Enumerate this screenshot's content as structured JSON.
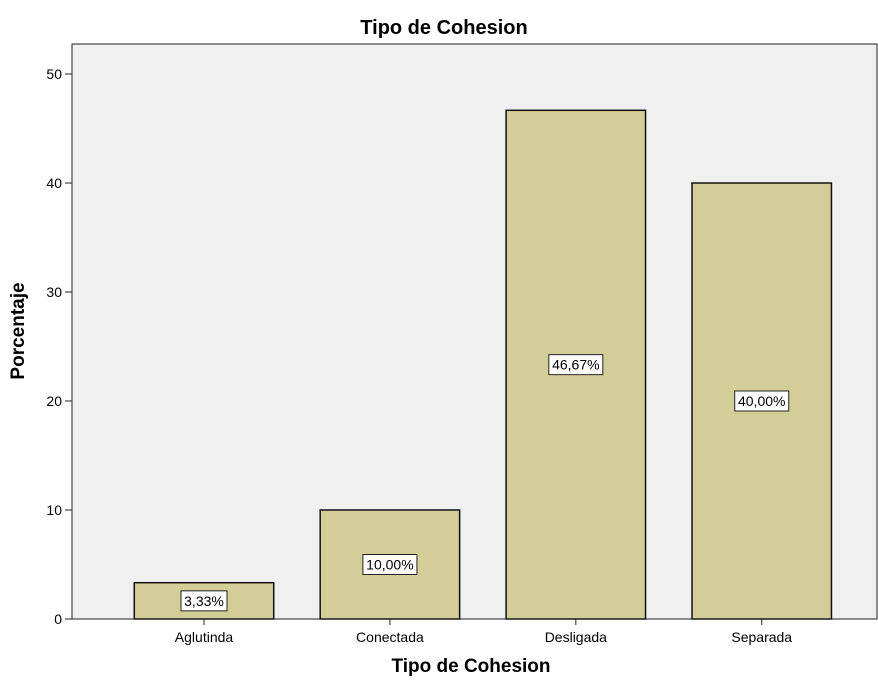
{
  "chart_data": {
    "type": "bar",
    "title": "Tipo de Cohesion",
    "xlabel": "Tipo de Cohesion",
    "ylabel": "Porcentaje",
    "categories": [
      "Aglutinda",
      "Conectada",
      "Desligada",
      "Separada"
    ],
    "values": [
      3.33,
      10.0,
      46.67,
      40.0
    ],
    "data_labels": [
      "3,33%",
      "10,00%",
      "46,67%",
      "40,00%"
    ],
    "ylim": [
      0,
      52
    ],
    "yticks": [
      0,
      10,
      20,
      30,
      40,
      50
    ],
    "grid": false,
    "legend": "none",
    "colors": {
      "bar_fill": "#d3ce97",
      "bar_stroke": "#111111",
      "plot_background": "#f0f0f0",
      "label_box": "#ffffff"
    }
  }
}
